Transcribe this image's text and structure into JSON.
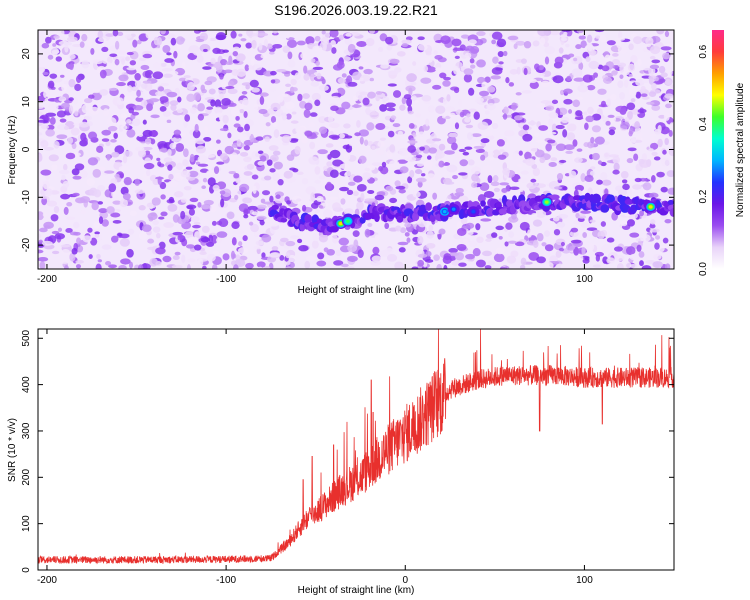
{
  "chart_data": [
    {
      "type": "heatmap",
      "title": "S196.2026.003.19.22.R21",
      "xlabel": "Height of straight line (km)",
      "ylabel": "Frequency (Hz)",
      "xlim": [
        -205,
        150
      ],
      "ylim": [
        -25,
        25
      ],
      "x_ticks": [
        -200,
        -100,
        0,
        100
      ],
      "y_ticks": [
        -20,
        -10,
        0,
        10,
        20
      ],
      "colorbar": {
        "label": "Normalized spectral amplitude",
        "range": [
          0.0,
          0.66
        ],
        "ticks": [
          0.0,
          0.2,
          0.4,
          0.6
        ],
        "colors": [
          "#ffffff",
          "#e9d3f9",
          "#9b4df0",
          "#6a16e8",
          "#2233ff",
          "#00b7ff",
          "#00ffd0",
          "#3dff2a",
          "#ffff00",
          "#ff9f00",
          "#ff3b3b",
          "#ff2a8a"
        ]
      },
      "ridge": {
        "x": [
          -75,
          -60,
          -45,
          -35,
          -25,
          -15,
          0,
          20,
          40,
          60,
          80,
          100,
          120,
          140,
          150
        ],
        "frequency": [
          -13,
          -15,
          -16,
          -15.5,
          -14,
          -13,
          -13.5,
          -13,
          -12.5,
          -11.5,
          -11,
          -11,
          -11.5,
          -12,
          -12
        ],
        "peaks": [
          {
            "x": -36,
            "frequency": -15.5,
            "amplitude": 0.5
          },
          {
            "x": -32,
            "frequency": -15,
            "amplitude": 0.4
          },
          {
            "x": 22,
            "frequency": -13,
            "amplitude": 0.3
          },
          {
            "x": 27,
            "frequency": -12.5,
            "amplitude": 0.28
          },
          {
            "x": 38,
            "frequency": -13,
            "amplitude": 0.25
          },
          {
            "x": 79,
            "frequency": -11,
            "amplitude": 0.45
          },
          {
            "x": 137,
            "frequency": -12,
            "amplitude": 0.5
          }
        ]
      }
    },
    {
      "type": "line",
      "xlabel": "Height of straight line (km)",
      "ylabel": "SNR (10 * v/v)",
      "xlim": [
        -205,
        150
      ],
      "ylim": [
        0,
        520
      ],
      "x_ticks": [
        -200,
        -100,
        0,
        100
      ],
      "y_ticks": [
        0,
        100,
        200,
        300,
        400,
        500
      ],
      "color": "#e8302d",
      "trend": {
        "x": [
          -205,
          -150,
          -100,
          -75,
          -65,
          -55,
          -45,
          -35,
          -25,
          -15,
          -5,
          5,
          15,
          25,
          40,
          55,
          70,
          85,
          100,
          120,
          150
        ],
        "y": [
          22,
          22,
          23,
          25,
          60,
          110,
          140,
          175,
          200,
          240,
          275,
          310,
          350,
          390,
          410,
          420,
          420,
          420,
          415,
          415,
          415
        ]
      },
      "spikes": [
        {
          "x": -57,
          "y": 195
        },
        {
          "x": -52,
          "y": 245
        },
        {
          "x": -40,
          "y": 270
        },
        {
          "x": -19,
          "y": 410
        },
        {
          "x": -18,
          "y": 340
        },
        {
          "x": -12,
          "y": 290
        },
        {
          "x": 5,
          "y": 355
        },
        {
          "x": 75,
          "y": 300
        },
        {
          "x": 110,
          "y": 315
        }
      ]
    }
  ]
}
